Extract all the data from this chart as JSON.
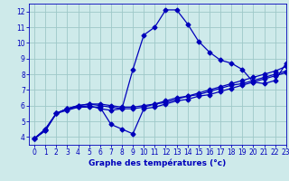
{
  "xlabel": "Graphe des températures (°c)",
  "xlim": [
    -0.5,
    23
  ],
  "ylim": [
    3.5,
    12.5
  ],
  "xticks": [
    0,
    1,
    2,
    3,
    4,
    5,
    6,
    7,
    8,
    9,
    10,
    11,
    12,
    13,
    14,
    15,
    16,
    17,
    18,
    19,
    20,
    21,
    22,
    23
  ],
  "yticks": [
    4,
    5,
    6,
    7,
    8,
    9,
    10,
    11,
    12
  ],
  "bg_color": "#ceeaea",
  "grid_color": "#9ec8c8",
  "line_color": "#0000bb",
  "line1_x": [
    0,
    1,
    2,
    3,
    4,
    5,
    6,
    7,
    8,
    9,
    10,
    11,
    12,
    13,
    14,
    15,
    16,
    17,
    18,
    19,
    20,
    21,
    22,
    23
  ],
  "line1_y": [
    3.9,
    4.4,
    5.5,
    5.8,
    5.9,
    6.0,
    5.8,
    5.7,
    5.8,
    8.3,
    10.5,
    11.0,
    12.1,
    12.1,
    11.2,
    10.1,
    9.4,
    8.9,
    8.7,
    8.3,
    7.5,
    7.4,
    7.6,
    8.7
  ],
  "line2_x": [
    0,
    1,
    2,
    3,
    4,
    5,
    6,
    7,
    8,
    9,
    10,
    11,
    12,
    13,
    14,
    15,
    16,
    17,
    18,
    19,
    20,
    21,
    22,
    23
  ],
  "line2_y": [
    3.9,
    4.5,
    5.5,
    5.8,
    6.0,
    6.1,
    6.1,
    6.0,
    5.9,
    5.9,
    6.0,
    6.1,
    6.3,
    6.5,
    6.6,
    6.8,
    7.0,
    7.2,
    7.4,
    7.6,
    7.8,
    8.0,
    8.2,
    8.5
  ],
  "line3_x": [
    0,
    1,
    2,
    3,
    4,
    5,
    6,
    7,
    8,
    9,
    10,
    11,
    12,
    13,
    14,
    15,
    16,
    17,
    18,
    19,
    20,
    21,
    22,
    23
  ],
  "line3_y": [
    3.9,
    4.5,
    5.5,
    5.8,
    6.0,
    6.1,
    6.0,
    5.9,
    5.8,
    5.8,
    5.9,
    6.1,
    6.2,
    6.4,
    6.6,
    6.7,
    6.9,
    7.1,
    7.3,
    7.4,
    7.6,
    7.8,
    8.0,
    8.2
  ],
  "line4_x": [
    0,
    1,
    2,
    3,
    4,
    5,
    6,
    7,
    8,
    9,
    10,
    11,
    12,
    13,
    14,
    15,
    16,
    17,
    18,
    19,
    20,
    21,
    22,
    23
  ],
  "line4_y": [
    3.9,
    4.4,
    5.5,
    5.7,
    5.9,
    5.9,
    5.9,
    4.8,
    4.5,
    4.2,
    5.8,
    5.9,
    6.1,
    6.3,
    6.4,
    6.6,
    6.7,
    6.9,
    7.1,
    7.3,
    7.5,
    7.7,
    7.9,
    8.1
  ]
}
